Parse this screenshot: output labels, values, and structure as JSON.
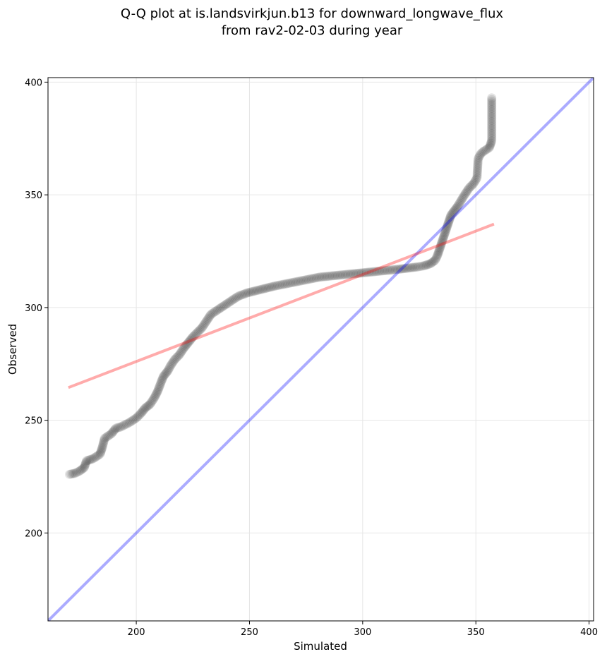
{
  "chart_data": {
    "type": "scatter",
    "title": [
      "Q-Q plot at is.landsvirkjun.b13 for downward_longwave_flux",
      "from rav2-02-03 during year"
    ],
    "xlabel": "Simulated",
    "ylabel": "Observed",
    "xlim": [
      161,
      402
    ],
    "ylim": [
      161,
      402
    ],
    "xticks": [
      200,
      250,
      300,
      350,
      400
    ],
    "yticks": [
      200,
      250,
      300,
      350,
      400
    ],
    "grid": true,
    "colors": {
      "points": "#000000",
      "identity_line": "#0000ff",
      "fit_line": "#ff0000",
      "grid": "#e6e6e6"
    },
    "quantiles": [
      [
        170.5,
        226
      ],
      [
        173,
        226.5
      ],
      [
        175,
        227.5
      ],
      [
        177,
        229
      ],
      [
        178,
        232
      ],
      [
        181,
        233
      ],
      [
        184,
        235
      ],
      [
        185,
        238
      ],
      [
        186,
        242
      ],
      [
        189,
        244
      ],
      [
        191,
        246.5
      ],
      [
        193,
        247
      ],
      [
        197,
        249
      ],
      [
        200,
        251
      ],
      [
        202,
        253
      ],
      [
        204,
        255.5
      ],
      [
        206,
        257
      ],
      [
        208,
        260
      ],
      [
        209.5,
        263
      ],
      [
        211,
        267
      ],
      [
        212,
        269.5
      ],
      [
        214,
        272
      ],
      [
        215,
        274
      ],
      [
        217,
        277
      ],
      [
        219,
        279
      ],
      [
        221,
        282
      ],
      [
        223,
        284.5
      ],
      [
        225,
        287
      ],
      [
        227,
        289
      ],
      [
        229,
        291
      ],
      [
        231,
        294
      ],
      [
        233,
        297
      ],
      [
        236,
        299
      ],
      [
        239,
        301
      ],
      [
        242,
        303
      ],
      [
        245,
        305
      ],
      [
        249,
        306.5
      ],
      [
        253,
        307.5
      ],
      [
        257,
        308.5
      ],
      [
        261,
        309.5
      ],
      [
        266,
        310.5
      ],
      [
        271,
        311.5
      ],
      [
        276,
        312.5
      ],
      [
        281,
        313.5
      ],
      [
        286,
        314
      ],
      [
        291,
        314.5
      ],
      [
        296,
        315
      ],
      [
        301,
        315.5
      ],
      [
        306,
        316
      ],
      [
        311,
        316.5
      ],
      [
        316,
        317
      ],
      [
        320,
        317.5
      ],
      [
        324,
        318
      ],
      [
        327,
        318.5
      ],
      [
        330,
        319.5
      ],
      [
        332,
        321
      ],
      [
        333,
        323
      ],
      [
        334,
        326
      ],
      [
        335,
        329
      ],
      [
        336,
        332
      ],
      [
        337,
        335
      ],
      [
        338,
        338
      ],
      [
        339,
        341
      ],
      [
        340.5,
        343
      ],
      [
        342,
        345
      ],
      [
        345,
        350
      ],
      [
        347,
        353
      ],
      [
        349,
        355
      ],
      [
        350.5,
        357.5
      ],
      [
        351,
        366
      ],
      [
        352,
        368
      ],
      [
        353,
        369
      ],
      [
        356,
        371
      ],
      [
        357,
        374
      ],
      [
        357,
        393
      ]
    ],
    "identity_line": {
      "from": [
        161,
        161
      ],
      "to": [
        402,
        402
      ]
    },
    "fit_line": {
      "from": [
        170,
        264.5
      ],
      "to": [
        358,
        337
      ]
    }
  }
}
